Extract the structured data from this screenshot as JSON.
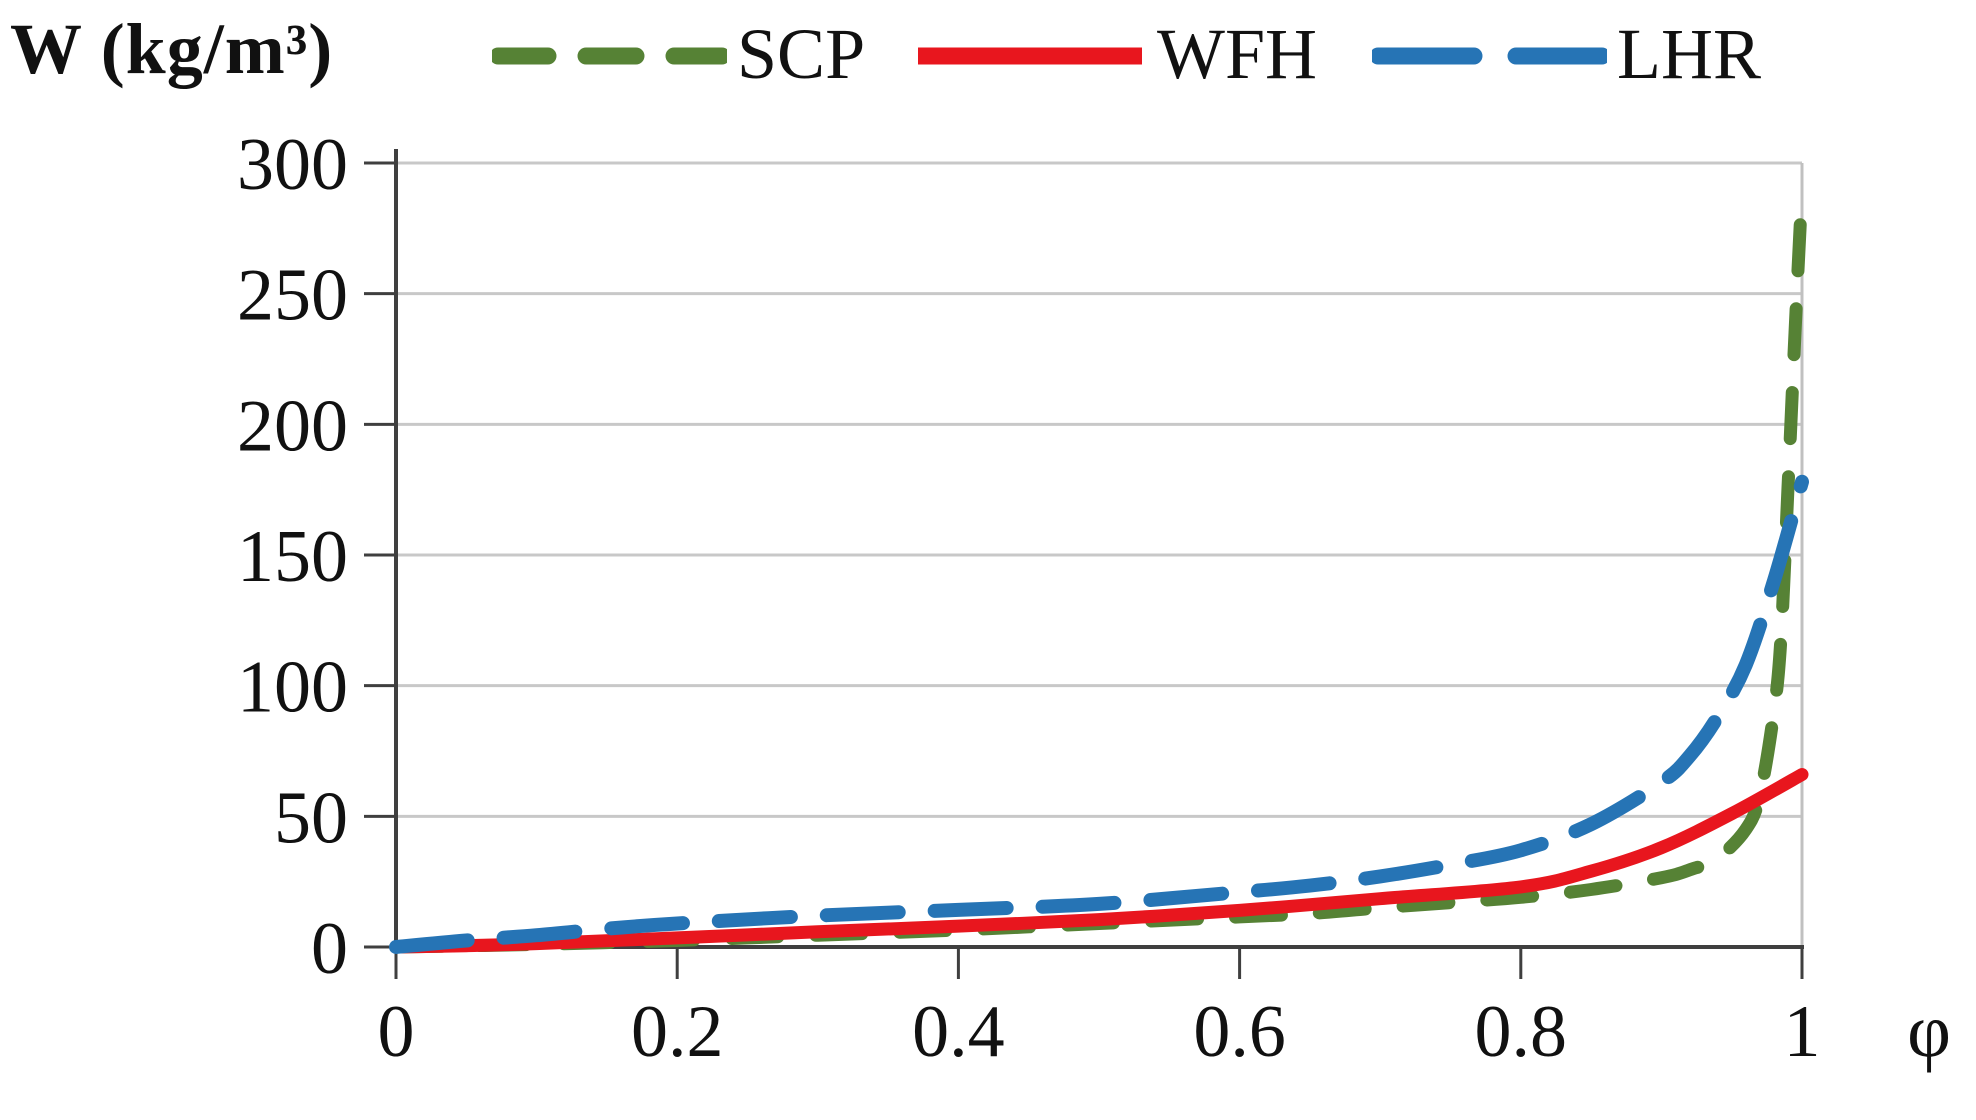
{
  "figure": {
    "title": "W (kg/m³)",
    "x_symbol": "φ"
  },
  "legend": {
    "position": "top",
    "items": [
      {
        "label": "SCP",
        "color": "#568235",
        "style": "dashed"
      },
      {
        "label": "WFH",
        "color": "#E8161E",
        "style": "solid"
      },
      {
        "label": "LHR",
        "color": "#2674B5",
        "style": "dashed"
      }
    ]
  },
  "colors": {
    "background": "#FFFFFF",
    "gridline": "#C8C8C8",
    "plot_border": "#C0C0C0",
    "axis_line": "#3F3F3F",
    "text": "#111111"
  },
  "chart_data": {
    "type": "line",
    "title": "W (kg/m³)",
    "xlabel": "φ",
    "ylabel": "W (kg/m³)",
    "xlim": [
      0,
      1
    ],
    "ylim": [
      0,
      300
    ],
    "x_ticks": [
      0,
      0.2,
      0.4,
      0.6,
      0.8,
      1
    ],
    "x_tick_labels": [
      "0",
      "0.2",
      "0.4",
      "0.6",
      "0.8",
      "1"
    ],
    "y_ticks": [
      0,
      50,
      100,
      150,
      200,
      250,
      300
    ],
    "y_tick_labels": [
      "0",
      "50",
      "100",
      "150",
      "200",
      "250",
      "300"
    ],
    "grid": "horizontal",
    "legend_position": "top",
    "series": [
      {
        "name": "SCP",
        "color": "#568235",
        "style": "dashed",
        "dash": [
          46,
          38
        ],
        "width": 13,
        "points": [
          [
            0,
            0
          ],
          [
            0.1,
            1
          ],
          [
            0.2,
            2.5
          ],
          [
            0.3,
            4.5
          ],
          [
            0.4,
            6.5
          ],
          [
            0.5,
            9
          ],
          [
            0.6,
            11.5
          ],
          [
            0.65,
            12.8
          ],
          [
            0.7,
            15
          ],
          [
            0.75,
            17
          ],
          [
            0.8,
            19
          ],
          [
            0.85,
            22
          ],
          [
            0.9,
            26.5
          ],
          [
            0.92,
            29.5
          ],
          [
            0.94,
            34
          ],
          [
            0.96,
            45
          ],
          [
            0.97,
            58
          ],
          [
            0.98,
            90
          ],
          [
            0.985,
            118
          ],
          [
            0.99,
            175
          ],
          [
            0.995,
            235
          ],
          [
            1.0,
            290
          ]
        ]
      },
      {
        "name": "WFH",
        "color": "#E8161E",
        "style": "solid",
        "dash": null,
        "width": 13,
        "points": [
          [
            0,
            0
          ],
          [
            0.05,
            0.5
          ],
          [
            0.1,
            1.3
          ],
          [
            0.2,
            3.5
          ],
          [
            0.3,
            5.8
          ],
          [
            0.4,
            8
          ],
          [
            0.5,
            10.5
          ],
          [
            0.6,
            14
          ],
          [
            0.7,
            18.5
          ],
          [
            0.8,
            23
          ],
          [
            0.85,
            29
          ],
          [
            0.9,
            38
          ],
          [
            0.95,
            51
          ],
          [
            1.0,
            66
          ]
        ]
      },
      {
        "name": "LHR",
        "color": "#2674B5",
        "style": "dashed",
        "dash": [
          72,
          36
        ],
        "width": 14,
        "points": [
          [
            0,
            0
          ],
          [
            0.05,
            2.5
          ],
          [
            0.1,
            4.5
          ],
          [
            0.15,
            7
          ],
          [
            0.2,
            9
          ],
          [
            0.3,
            12
          ],
          [
            0.4,
            14.2
          ],
          [
            0.5,
            16.5
          ],
          [
            0.6,
            21
          ],
          [
            0.65,
            23.5
          ],
          [
            0.7,
            27
          ],
          [
            0.75,
            31.5
          ],
          [
            0.8,
            37
          ],
          [
            0.85,
            47
          ],
          [
            0.9,
            63
          ],
          [
            0.92,
            73
          ],
          [
            0.94,
            88
          ],
          [
            0.96,
            108
          ],
          [
            0.98,
            140
          ],
          [
            1.0,
            178
          ]
        ]
      }
    ]
  }
}
